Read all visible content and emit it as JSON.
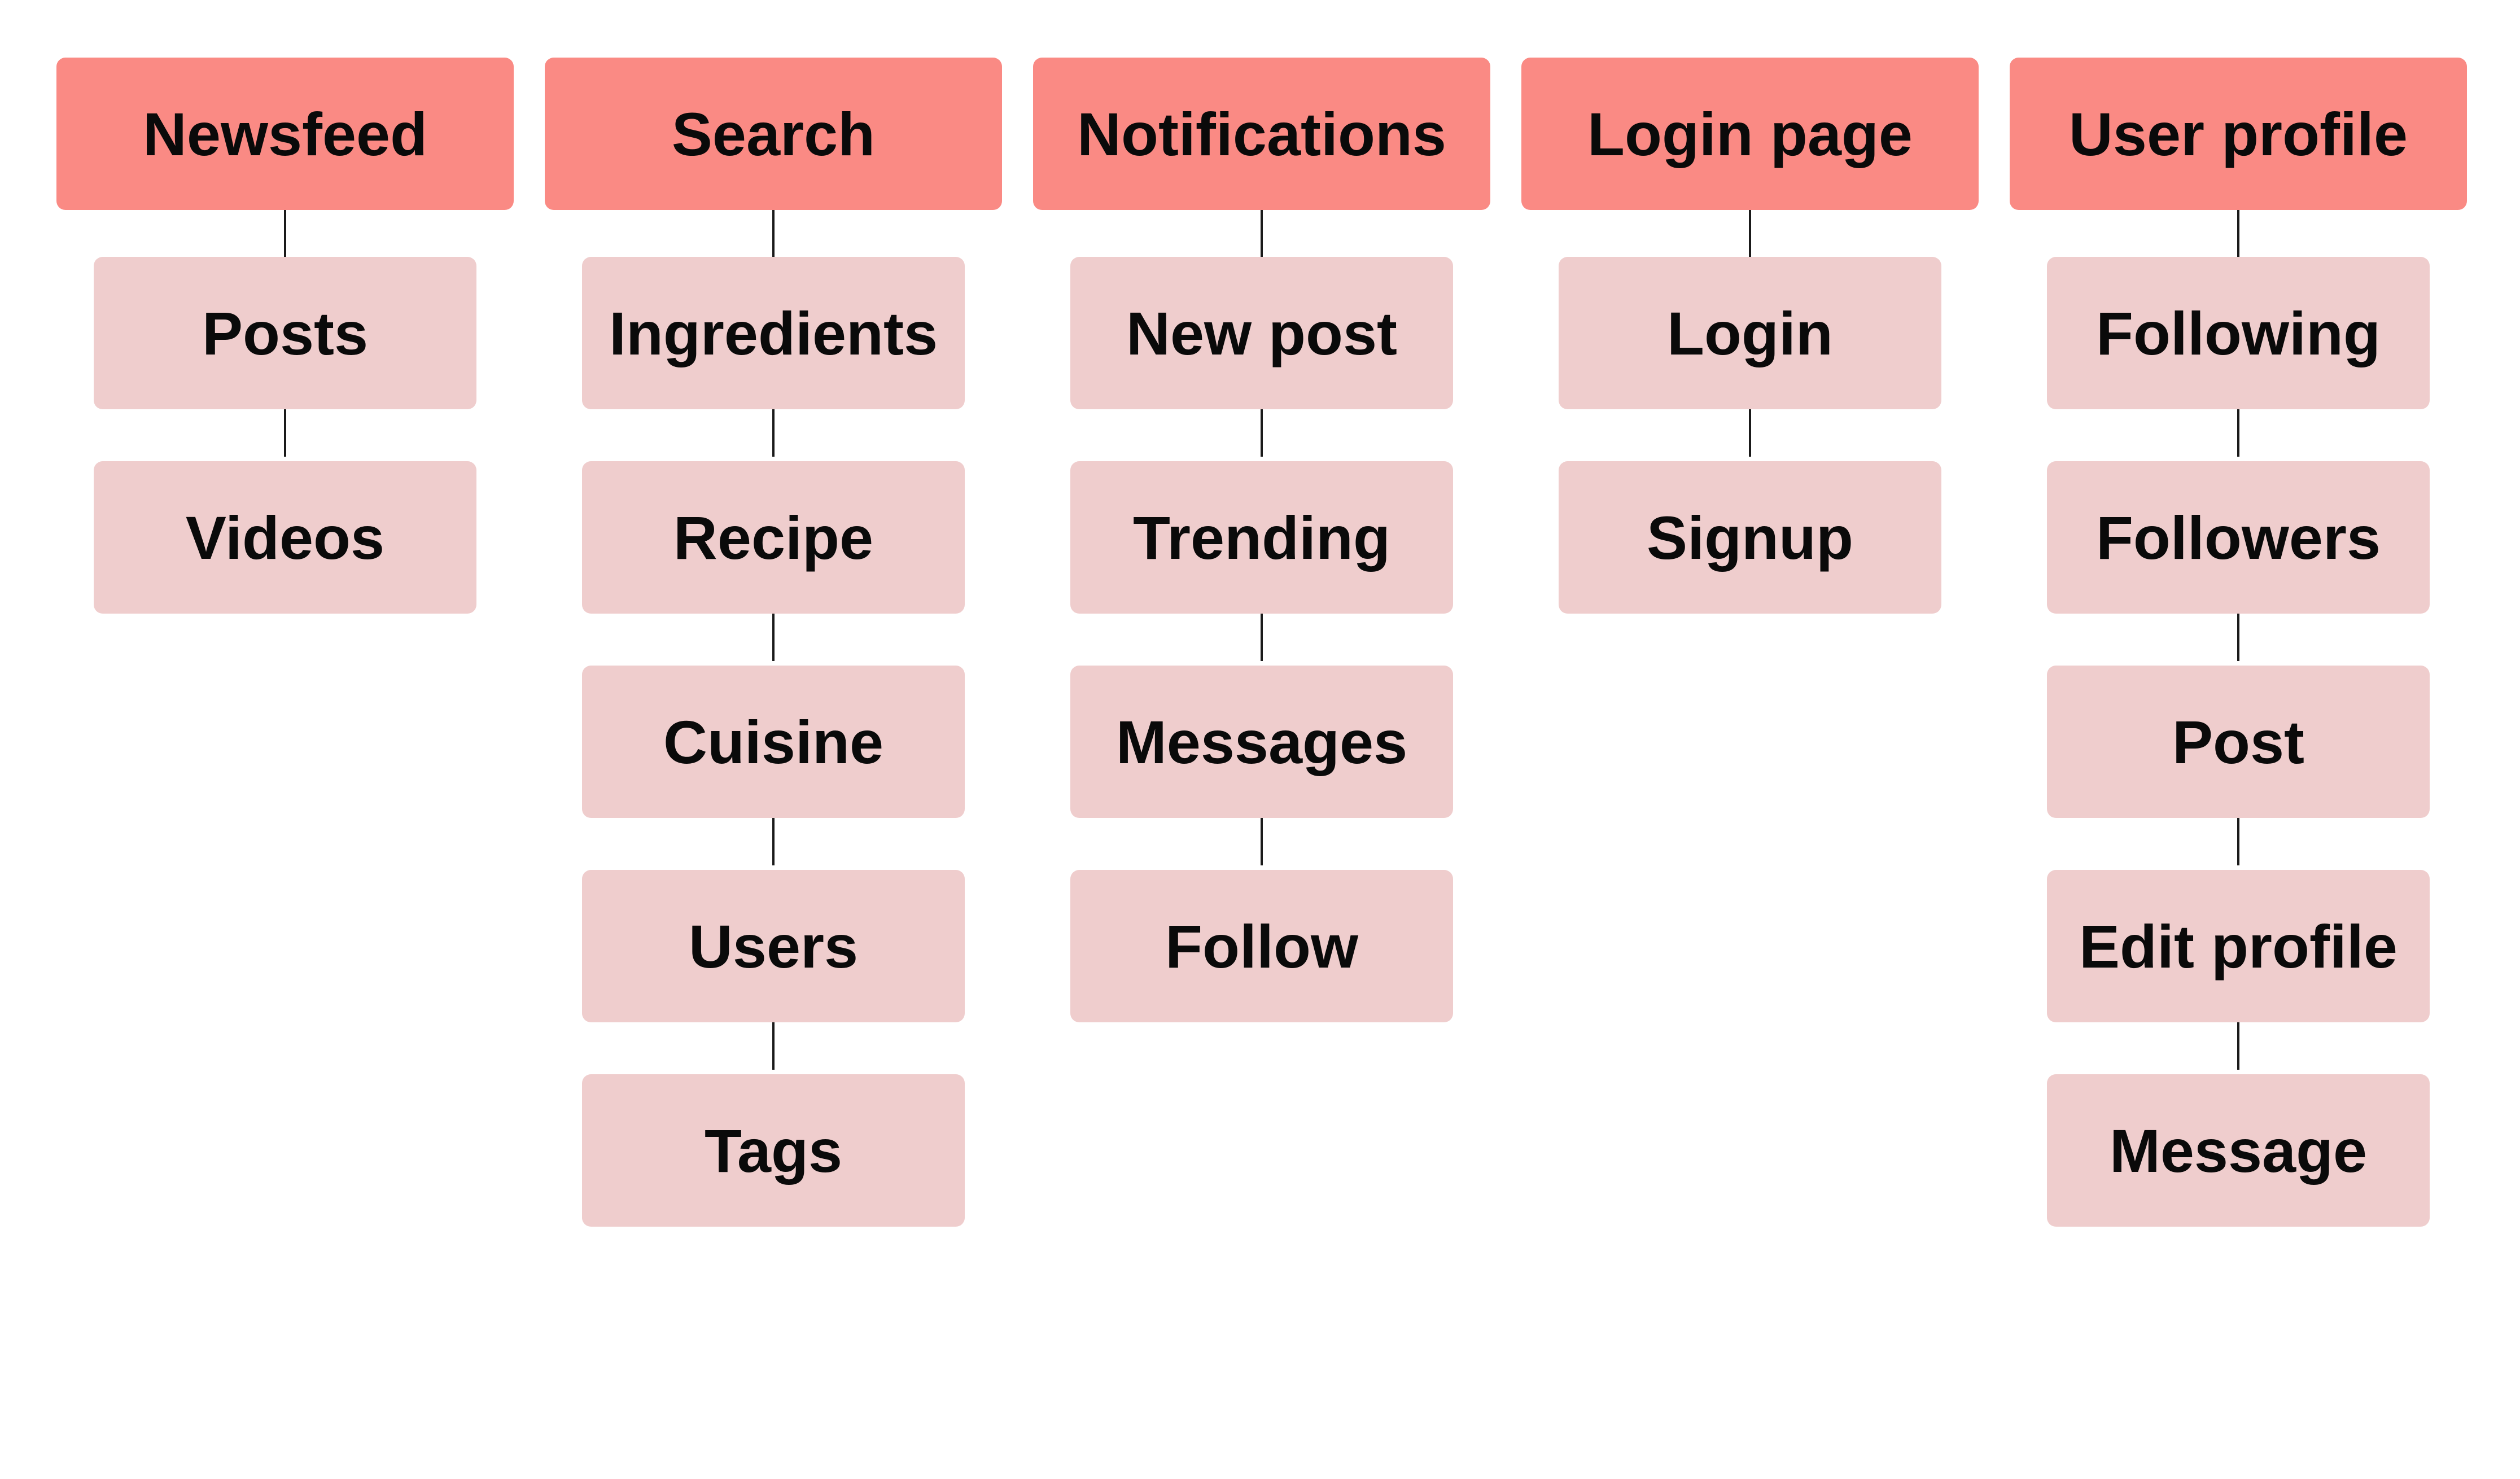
{
  "sitemap": {
    "columns": [
      {
        "title": "Newsfeed",
        "items": [
          "Posts",
          "Videos"
        ]
      },
      {
        "title": "Search",
        "items": [
          "Ingredients",
          "Recipe",
          "Cuisine",
          "Users",
          "Tags"
        ]
      },
      {
        "title": "Notifications",
        "items": [
          "New post",
          "Trending",
          "Messages",
          "Follow"
        ]
      },
      {
        "title": "Login page",
        "items": [
          "Login",
          "Signup"
        ]
      },
      {
        "title": "User profile",
        "items": [
          "Following",
          "Followers",
          "Post",
          "Edit profile",
          "Message"
        ]
      }
    ]
  },
  "colors": {
    "header_fill": "#fa8a84",
    "child_fill": "#efcdcd",
    "connector": "#1a1a1a",
    "text": "#0a0a0a"
  }
}
